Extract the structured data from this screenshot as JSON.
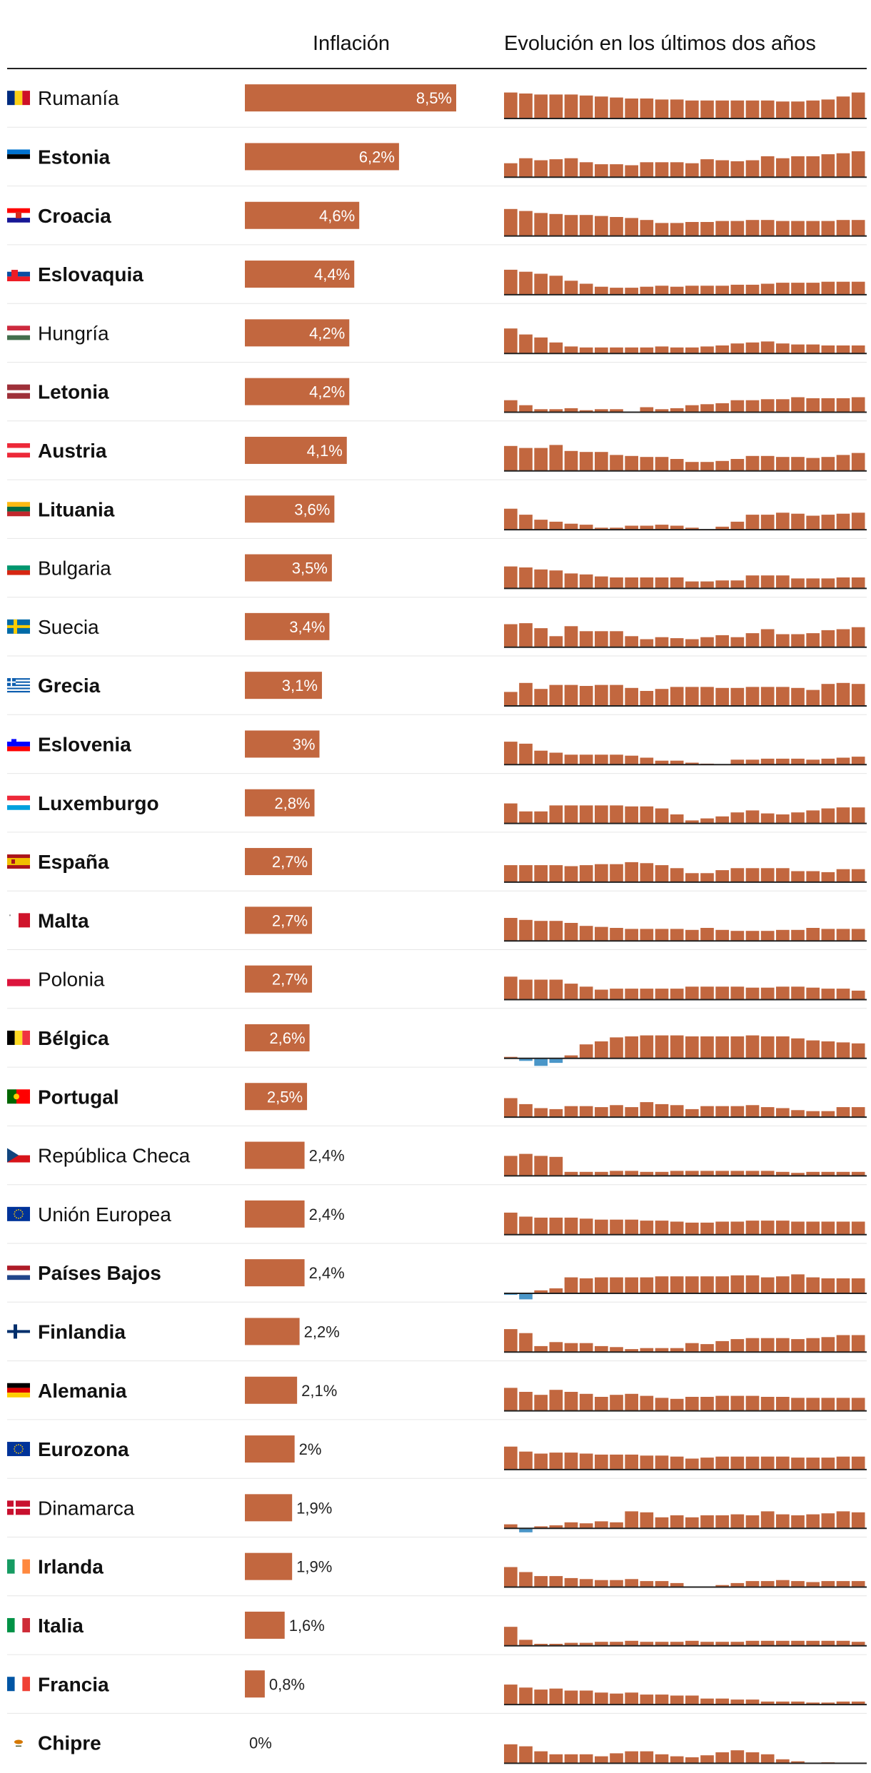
{
  "colors": {
    "bar": "#c2673f",
    "negative": "#4a96c8",
    "rule": "#222222",
    "separator": "#e6e6e6"
  },
  "chart_data": {
    "type": "bar",
    "columns": {
      "inflation": "Inflación",
      "evolution": "Evolución en los últimos dos años"
    },
    "xlim": [
      0,
      8.5
    ],
    "rows": [
      {
        "country": "Rumanía",
        "bold": false,
        "flag": "flag-ro",
        "value": 8.5,
        "label": "8,5%",
        "history": [
          5.2,
          5.0,
          4.8,
          4.8,
          4.8,
          4.6,
          4.4,
          4.2,
          4.0,
          4.0,
          3.8,
          3.8,
          3.6,
          3.6,
          3.6,
          3.6,
          3.6,
          3.6,
          3.4,
          3.4,
          3.6,
          3.8,
          4.4,
          5.2
        ]
      },
      {
        "country": "Estonia",
        "bold": true,
        "flag": "flag-ee",
        "value": 6.2,
        "label": "6,2%",
        "history": [
          2.8,
          3.8,
          3.4,
          3.6,
          3.8,
          3.0,
          2.6,
          2.6,
          2.4,
          3.0,
          3.0,
          3.0,
          2.8,
          3.6,
          3.4,
          3.2,
          3.4,
          4.2,
          3.8,
          4.2,
          4.2,
          4.6,
          4.8,
          5.2
        ]
      },
      {
        "country": "Croacia",
        "bold": true,
        "flag": "flag-hr",
        "value": 4.6,
        "label": "4,6%",
        "history": [
          5.4,
          5.0,
          4.6,
          4.4,
          4.2,
          4.2,
          4.0,
          3.8,
          3.6,
          3.2,
          2.6,
          2.6,
          2.8,
          2.8,
          3.0,
          3.0,
          3.2,
          3.2,
          3.0,
          3.0,
          3.0,
          3.0,
          3.2,
          3.2
        ]
      },
      {
        "country": "Eslovaquia",
        "bold": true,
        "flag": "flag-sk",
        "value": 4.4,
        "label": "4,4%",
        "history": [
          5.0,
          4.6,
          4.2,
          3.8,
          2.8,
          2.2,
          1.6,
          1.4,
          1.4,
          1.6,
          1.8,
          1.6,
          1.8,
          1.8,
          1.8,
          2.0,
          2.0,
          2.2,
          2.4,
          2.4,
          2.4,
          2.6,
          2.6,
          2.6
        ]
      },
      {
        "country": "Hungría",
        "bold": false,
        "flag": "flag-hu",
        "value": 4.2,
        "label": "4,2%",
        "history": [
          5.0,
          3.8,
          3.2,
          2.2,
          1.4,
          1.2,
          1.2,
          1.2,
          1.2,
          1.2,
          1.4,
          1.2,
          1.2,
          1.4,
          1.6,
          2.0,
          2.2,
          2.4,
          2.0,
          1.8,
          1.8,
          1.6,
          1.6,
          1.6
        ]
      },
      {
        "country": "Letonia",
        "bold": true,
        "flag": "flag-lv",
        "value": 4.2,
        "label": "4,2%",
        "history": [
          2.4,
          1.4,
          0.6,
          0.6,
          0.8,
          0.4,
          0.6,
          0.6,
          0,
          1.0,
          0.6,
          0.8,
          1.4,
          1.6,
          1.8,
          2.4,
          2.4,
          2.6,
          2.6,
          3.0,
          2.8,
          2.8,
          2.8,
          3.0
        ]
      },
      {
        "country": "Austria",
        "bold": true,
        "flag": "flag-at",
        "value": 4.1,
        "label": "4,1%",
        "history": [
          5.0,
          4.6,
          4.6,
          5.2,
          4.0,
          3.8,
          3.8,
          3.2,
          3.0,
          2.8,
          2.8,
          2.4,
          1.8,
          1.8,
          2.0,
          2.4,
          3.0,
          3.0,
          2.8,
          2.8,
          2.6,
          2.8,
          3.2,
          3.6
        ]
      },
      {
        "country": "Lituania",
        "bold": true,
        "flag": "flag-lt",
        "value": 3.6,
        "label": "3,6%",
        "history": [
          4.2,
          3.0,
          2.0,
          1.6,
          1.2,
          1.0,
          0.4,
          0.4,
          0.8,
          0.8,
          1.0,
          0.8,
          0.4,
          0.1,
          0.6,
          1.6,
          3.0,
          3.0,
          3.4,
          3.2,
          2.8,
          3.0,
          3.2,
          3.4
        ]
      },
      {
        "country": "Bulgaria",
        "bold": false,
        "flag": "flag-bg",
        "value": 3.5,
        "label": "3,5%",
        "history": [
          4.4,
          4.2,
          3.8,
          3.6,
          3.0,
          2.8,
          2.4,
          2.2,
          2.2,
          2.2,
          2.2,
          2.2,
          1.4,
          1.4,
          1.6,
          1.6,
          2.6,
          2.6,
          2.6,
          2.0,
          2.0,
          2.0,
          2.2,
          2.2
        ]
      },
      {
        "country": "Suecia",
        "bold": false,
        "flag": "flag-se",
        "value": 3.4,
        "label": "3,4%",
        "history": [
          4.6,
          4.8,
          3.8,
          2.2,
          4.2,
          3.2,
          3.2,
          3.2,
          2.2,
          1.6,
          2.0,
          1.8,
          1.6,
          2.0,
          2.4,
          2.0,
          2.8,
          3.6,
          2.6,
          2.6,
          2.8,
          3.4,
          3.6,
          4.0
        ]
      },
      {
        "country": "Grecia",
        "bold": true,
        "flag": "flag-gr",
        "value": 3.1,
        "label": "3,1%",
        "history": [
          2.8,
          4.6,
          3.4,
          4.2,
          4.2,
          4.0,
          4.2,
          4.2,
          3.6,
          3.0,
          3.4,
          3.8,
          3.8,
          3.8,
          3.6,
          3.6,
          3.8,
          3.8,
          3.8,
          3.6,
          3.2,
          4.4,
          4.6,
          4.4
        ]
      },
      {
        "country": "Eslovenia",
        "bold": true,
        "flag": "flag-si",
        "value": 3.0,
        "label": "3%",
        "history": [
          4.6,
          4.2,
          2.8,
          2.4,
          2.0,
          2.0,
          2.0,
          2.0,
          1.8,
          1.4,
          0.8,
          0.8,
          0.4,
          0.2,
          0.1,
          1.0,
          1.0,
          1.2,
          1.2,
          1.2,
          1.0,
          1.2,
          1.4,
          1.6
        ]
      },
      {
        "country": "Luxemburgo",
        "bold": true,
        "flag": "flag-lu",
        "value": 2.8,
        "label": "2,8%",
        "history": [
          4.0,
          2.4,
          2.4,
          3.6,
          3.6,
          3.6,
          3.6,
          3.6,
          3.4,
          3.4,
          3.0,
          1.8,
          0.6,
          1.0,
          1.4,
          2.2,
          2.6,
          2.0,
          1.8,
          2.2,
          2.6,
          3.0,
          3.2,
          3.2
        ]
      },
      {
        "country": "España",
        "bold": true,
        "flag": "flag-es",
        "value": 2.7,
        "label": "2,7%",
        "history": [
          3.4,
          3.4,
          3.4,
          3.4,
          3.2,
          3.4,
          3.6,
          3.6,
          4.0,
          3.8,
          3.4,
          2.8,
          1.8,
          1.8,
          2.4,
          2.8,
          2.8,
          2.8,
          2.8,
          2.2,
          2.2,
          2.0,
          2.6,
          2.6
        ]
      },
      {
        "country": "Malta",
        "bold": true,
        "flag": "flag-mt",
        "value": 2.7,
        "label": "2,7%",
        "history": [
          4.6,
          4.2,
          4.0,
          4.0,
          3.6,
          3.0,
          2.8,
          2.6,
          2.4,
          2.4,
          2.4,
          2.4,
          2.2,
          2.6,
          2.2,
          2.0,
          2.0,
          2.0,
          2.2,
          2.2,
          2.6,
          2.4,
          2.4,
          2.4
        ]
      },
      {
        "country": "Polonia",
        "bold": false,
        "flag": "flag-pl",
        "value": 2.7,
        "label": "2,7%",
        "history": [
          4.6,
          4.0,
          4.0,
          4.0,
          3.2,
          2.6,
          2.0,
          2.2,
          2.2,
          2.2,
          2.2,
          2.2,
          2.6,
          2.6,
          2.6,
          2.6,
          2.4,
          2.4,
          2.6,
          2.6,
          2.4,
          2.2,
          2.2,
          1.8
        ]
      },
      {
        "country": "Bélgica",
        "bold": true,
        "flag": "flag-be",
        "value": 2.6,
        "label": "2,6%",
        "history": [
          0.3,
          -0.5,
          -1.5,
          -0.9,
          0.6,
          2.8,
          3.4,
          4.2,
          4.4,
          4.6,
          4.6,
          4.6,
          4.4,
          4.4,
          4.4,
          4.4,
          4.6,
          4.4,
          4.4,
          4.0,
          3.6,
          3.4,
          3.2,
          3.0
        ]
      },
      {
        "country": "Portugal",
        "bold": true,
        "flag": "flag-pt",
        "value": 2.5,
        "label": "2,5%",
        "history": [
          3.8,
          2.6,
          1.8,
          1.6,
          2.2,
          2.2,
          2.0,
          2.4,
          2.0,
          3.0,
          2.6,
          2.4,
          1.6,
          2.2,
          2.2,
          2.2,
          2.4,
          2.0,
          1.8,
          1.4,
          1.2,
          1.2,
          2.0,
          2.0
        ]
      },
      {
        "country": "República Checa",
        "bold": false,
        "flag": "flag-cz",
        "value": 2.4,
        "label": "2,4%",
        "history": [
          4.0,
          4.4,
          4.0,
          3.8,
          0.8,
          0.8,
          0.8,
          1.0,
          1.0,
          0.8,
          0.8,
          1.0,
          1.0,
          1.0,
          1.0,
          1.0,
          1.0,
          1.0,
          0.8,
          0.6,
          0.8,
          0.8,
          0.8,
          0.8
        ]
      },
      {
        "country": "Unión Europea",
        "bold": false,
        "flag": "flag-eu",
        "value": 2.4,
        "label": "2,4%",
        "history": [
          4.4,
          3.6,
          3.4,
          3.4,
          3.4,
          3.2,
          3.0,
          3.0,
          3.0,
          2.8,
          2.8,
          2.6,
          2.4,
          2.4,
          2.6,
          2.6,
          2.8,
          2.8,
          2.8,
          2.6,
          2.6,
          2.6,
          2.6,
          2.6
        ]
      },
      {
        "country": "Países Bajos",
        "bold": true,
        "flag": "flag-nl",
        "value": 2.4,
        "label": "2,4%",
        "history": [
          -0.3,
          -1.2,
          0.6,
          1.0,
          3.2,
          3.0,
          3.2,
          3.2,
          3.2,
          3.2,
          3.4,
          3.4,
          3.4,
          3.4,
          3.4,
          3.6,
          3.6,
          3.2,
          3.4,
          3.8,
          3.2,
          3.0,
          3.0,
          3.0
        ]
      },
      {
        "country": "Finlandia",
        "bold": true,
        "flag": "flag-fi",
        "value": 2.2,
        "label": "2,2%",
        "history": [
          4.6,
          3.8,
          1.2,
          2.0,
          1.8,
          1.8,
          1.2,
          1.0,
          0.6,
          0.8,
          0.8,
          0.8,
          1.8,
          1.6,
          2.2,
          2.6,
          2.8,
          2.8,
          2.8,
          2.6,
          2.8,
          3.0,
          3.4,
          3.4
        ]
      },
      {
        "country": "Alemania",
        "bold": true,
        "flag": "flag-de",
        "value": 2.1,
        "label": "2,1%",
        "history": [
          4.6,
          3.8,
          3.2,
          4.2,
          3.8,
          3.4,
          2.8,
          3.2,
          3.4,
          3.0,
          2.6,
          2.4,
          2.8,
          2.8,
          3.0,
          3.0,
          3.0,
          2.8,
          2.8,
          2.6,
          2.6,
          2.6,
          2.6,
          2.6
        ]
      },
      {
        "country": "Eurozona",
        "bold": true,
        "flag": "flag-eu",
        "value": 2.0,
        "label": "2%",
        "history": [
          4.6,
          3.6,
          3.2,
          3.4,
          3.4,
          3.2,
          3.0,
          3.0,
          3.0,
          2.8,
          2.8,
          2.6,
          2.2,
          2.4,
          2.6,
          2.6,
          2.6,
          2.6,
          2.6,
          2.4,
          2.4,
          2.4,
          2.6,
          2.6
        ]
      },
      {
        "country": "Dinamarca",
        "bold": false,
        "flag": "flag-dk",
        "value": 1.9,
        "label": "1,9%",
        "history": [
          0.8,
          -0.8,
          0.4,
          0.6,
          1.2,
          1.0,
          1.4,
          1.2,
          3.4,
          3.2,
          2.2,
          2.6,
          2.2,
          2.6,
          2.6,
          2.8,
          2.6,
          3.4,
          2.8,
          2.6,
          2.8,
          3.0,
          3.4,
          3.2
        ]
      },
      {
        "country": "Irlanda",
        "bold": true,
        "flag": "flag-ie",
        "value": 1.9,
        "label": "1,9%",
        "history": [
          4.0,
          3.0,
          2.2,
          2.2,
          1.8,
          1.6,
          1.4,
          1.4,
          1.6,
          1.2,
          1.2,
          0.8,
          0.1,
          0.1,
          0.4,
          0.8,
          1.2,
          1.2,
          1.4,
          1.2,
          1.0,
          1.2,
          1.2,
          1.2
        ]
      },
      {
        "country": "Italia",
        "bold": true,
        "flag": "flag-it",
        "value": 1.6,
        "label": "1,6%",
        "history": [
          3.8,
          1.2,
          0.4,
          0.4,
          0.6,
          0.6,
          0.8,
          0.8,
          1.0,
          0.8,
          0.8,
          0.8,
          1.0,
          0.8,
          0.8,
          0.8,
          1.0,
          1.0,
          1.0,
          1.0,
          1.0,
          1.0,
          1.0,
          0.8
        ]
      },
      {
        "country": "Francia",
        "bold": true,
        "flag": "flag-fr",
        "value": 0.8,
        "label": "0,8%",
        "history": [
          4.0,
          3.4,
          3.0,
          3.2,
          2.8,
          2.8,
          2.4,
          2.2,
          2.4,
          2.0,
          2.0,
          1.8,
          1.8,
          1.2,
          1.2,
          1.0,
          1.0,
          0.6,
          0.6,
          0.6,
          0.4,
          0.4,
          0.6,
          0.6
        ]
      },
      {
        "country": "Chipre",
        "bold": true,
        "flag": "flag-cy",
        "value": 0.0,
        "label": "0%",
        "history": [
          3.8,
          3.4,
          2.4,
          1.8,
          1.8,
          1.8,
          1.4,
          2.0,
          2.4,
          2.4,
          1.8,
          1.4,
          1.2,
          1.6,
          2.2,
          2.6,
          2.2,
          1.8,
          0.8,
          0.4,
          0.1,
          0.2,
          0,
          0
        ]
      }
    ]
  }
}
